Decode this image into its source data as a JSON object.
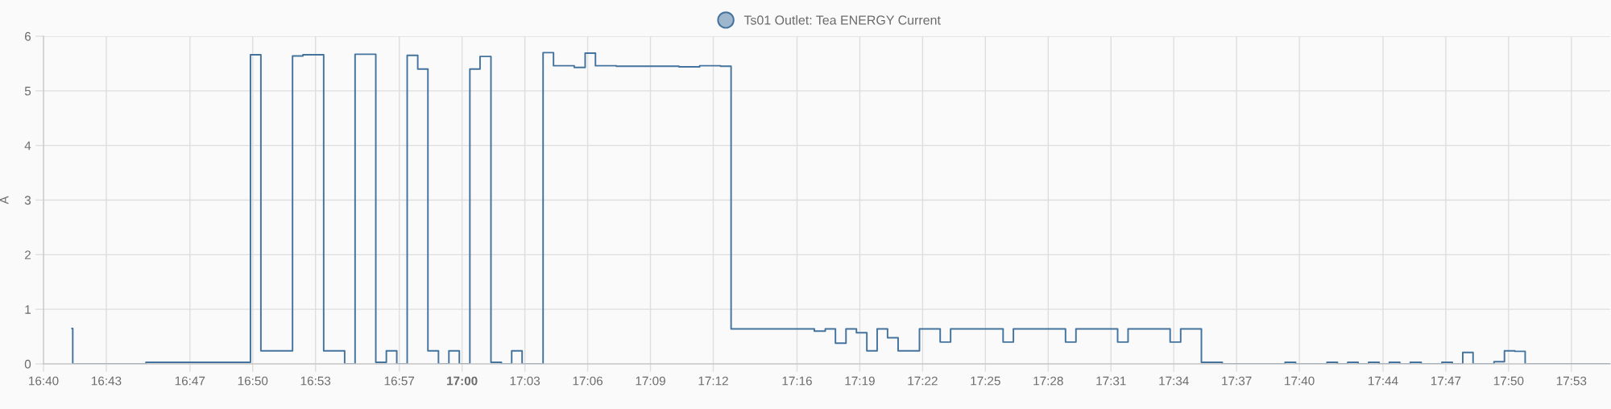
{
  "chart_data": {
    "type": "step",
    "ylabel": "A",
    "legend": "top",
    "grid": true,
    "x": [
      16.6893,
      16.69,
      16.7483,
      16.8315,
      16.8398,
      16.865,
      16.8733,
      16.8898,
      16.9065,
      16.9148,
      16.9313,
      16.9397,
      16.948,
      16.9563,
      16.9647,
      16.9728,
      16.9812,
      16.9895,
      16.9978,
      17.0062,
      17.0143,
      17.023,
      17.0313,
      17.0395,
      17.0478,
      17.0645,
      17.0728,
      17.0893,
      17.098,
      17.1062,
      17.1228,
      17.1727,
      17.1892,
      17.2058,
      17.2142,
      17.2805,
      17.2892,
      17.2973,
      17.3057,
      17.314,
      17.3223,
      17.3305,
      17.3388,
      17.3472,
      17.3642,
      17.3807,
      17.389,
      17.4308,
      17.439,
      17.4805,
      17.4888,
      17.522,
      17.5303,
      17.5638,
      17.5722,
      17.5887,
      17.6053,
      17.6553,
      17.6637,
      17.6887,
      17.697,
      17.7052,
      17.7135,
      17.7218,
      17.7302,
      17.7383,
      17.7467,
      17.755,
      17.7637,
      17.7802,
      17.7885,
      17.7968,
      17.805,
      17.8217,
      17.83,
      17.8383,
      17.8465,
      17.9142
    ],
    "series": [
      {
        "name": "Ts01 Outlet: Tea ENERGY Current",
        "color": "#44739e",
        "values": [
          0.65,
          0,
          0.03,
          5.66,
          0.24,
          5.64,
          5.66,
          0.24,
          0,
          5.67,
          0.03,
          0.24,
          0,
          5.65,
          5.4,
          0.24,
          0,
          0.24,
          0,
          5.4,
          5.63,
          0.03,
          0,
          0.24,
          0,
          5.7,
          5.46,
          5.43,
          5.69,
          5.46,
          5.45,
          5.44,
          5.46,
          5.45,
          0.64,
          0.6,
          0.64,
          0.38,
          0.64,
          0.57,
          0.24,
          0.64,
          0.48,
          0.24,
          0.64,
          0.4,
          0.64,
          0.4,
          0.64,
          0.4,
          0.64,
          0.4,
          0.64,
          0.4,
          0.64,
          0.03,
          0,
          0.03,
          0,
          0.03,
          0,
          0.03,
          0,
          0.03,
          0,
          0.03,
          0,
          0.03,
          0,
          0.03,
          0,
          0.21,
          0,
          0.04,
          0.24,
          0.23,
          0,
          0
        ]
      }
    ],
    "xlim": [
      16.6667,
      17.9142
    ],
    "xticks": [
      {
        "value": 16.6667,
        "label": "16:40"
      },
      {
        "value": 16.7167,
        "label": "16:43"
      },
      {
        "value": 16.7833,
        "label": "16:47"
      },
      {
        "value": 16.8333,
        "label": "16:50"
      },
      {
        "value": 16.8833,
        "label": "16:53"
      },
      {
        "value": 16.95,
        "label": "16:57"
      },
      {
        "value": 17,
        "label": "17:00"
      },
      {
        "value": 17.05,
        "label": "17:03"
      },
      {
        "value": 17.1,
        "label": "17:06"
      },
      {
        "value": 17.15,
        "label": "17:09"
      },
      {
        "value": 17.2,
        "label": "17:12"
      },
      {
        "value": 17.2667,
        "label": "17:16"
      },
      {
        "value": 17.3167,
        "label": "17:19"
      },
      {
        "value": 17.3667,
        "label": "17:22"
      },
      {
        "value": 17.4167,
        "label": "17:25"
      },
      {
        "value": 17.4667,
        "label": "17:28"
      },
      {
        "value": 17.5167,
        "label": "17:31"
      },
      {
        "value": 17.5667,
        "label": "17:34"
      },
      {
        "value": 17.6167,
        "label": "17:37"
      },
      {
        "value": 17.6667,
        "label": "17:40"
      },
      {
        "value": 17.7333,
        "label": "17:44"
      },
      {
        "value": 17.7833,
        "label": "17:47"
      },
      {
        "value": 17.8333,
        "label": "17:50"
      },
      {
        "value": 17.8833,
        "label": "17:53"
      }
    ],
    "ylim": [
      0,
      6
    ],
    "yticks": [
      0,
      1,
      2,
      3,
      4,
      5,
      6
    ]
  }
}
